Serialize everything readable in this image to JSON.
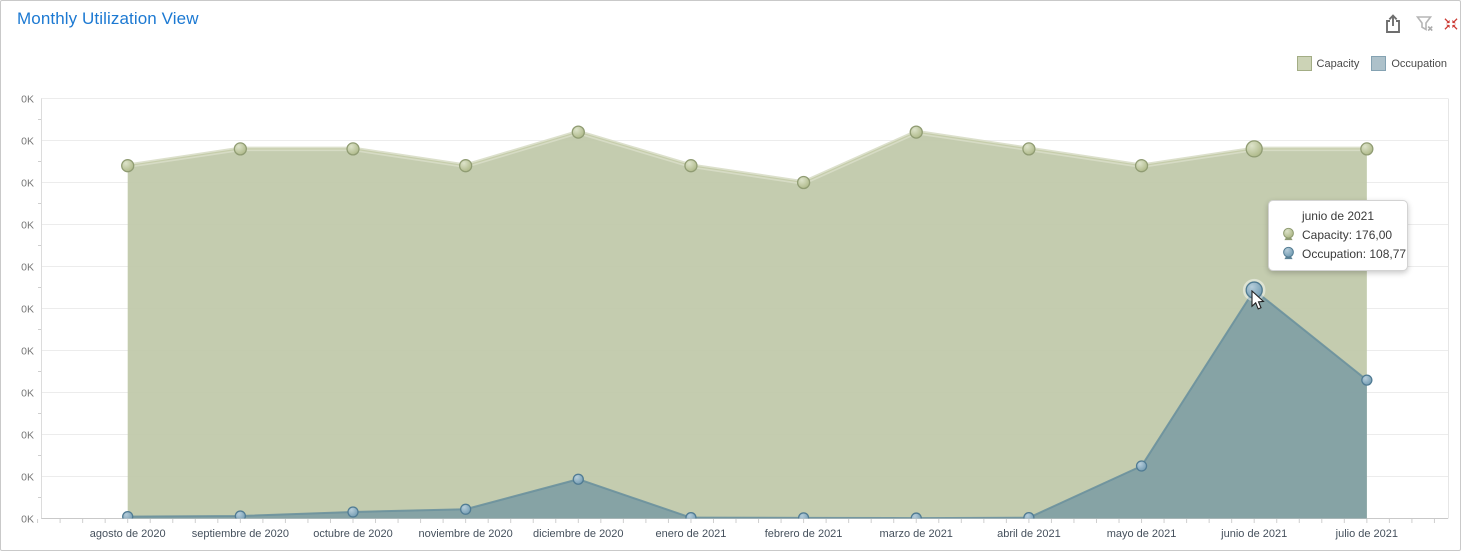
{
  "header": {
    "title": "Monthly Utilization View",
    "icons": [
      {
        "name": "export-icon",
        "color": "#6e6e6e"
      },
      {
        "name": "clear-filter-icon",
        "color": "#b5b5b5"
      },
      {
        "name": "collapse-icon",
        "color": "#cc3a33"
      }
    ]
  },
  "chart_data": {
    "type": "area",
    "title": "Monthly Utilization View",
    "categories": [
      "agosto de 2020",
      "septiembre de 2020",
      "octubre de 2020",
      "noviembre de 2020",
      "diciembre de 2020",
      "enero de 2021",
      "febrero de 2021",
      "marzo de 2021",
      "abril de 2021",
      "mayo de 2021",
      "junio de 2021",
      "julio de 2021"
    ],
    "series": [
      {
        "name": "Capacity",
        "values": [
          168,
          176,
          176,
          168,
          184,
          168,
          160,
          184,
          176,
          168,
          176,
          176
        ],
        "fill": "#bfc8a8",
        "fill_opacity": 0.92,
        "edge_light": "#d8ddc6",
        "edge": "#c3cba7",
        "marker_stroke": "#909c73",
        "marker_grad_in": "#dde3ca",
        "marker_grad_out": "#aab583",
        "swatch_fill": "#ccd3b6",
        "swatch_border": "#a3ad85"
      },
      {
        "name": "Occupation",
        "values": [
          0.9,
          1.2,
          3.1,
          4.4,
          18.7,
          0.4,
          0.3,
          0.2,
          0.4,
          25,
          108.77,
          65.9
        ],
        "fill": "#7b9ba3",
        "fill_opacity": 0.85,
        "edge": "#6b919d",
        "marker_stroke": "#507b93",
        "marker_grad_in": "#b6cdda",
        "marker_grad_out": "#6f99b0",
        "swatch_fill": "#adc1ca",
        "swatch_border": "#84a2b2"
      }
    ],
    "ylim": [
      0,
      200
    ],
    "y_tick_step": 20,
    "y_tick_label": "0K",
    "y_tick_count": 11,
    "grid": true,
    "legend_position": "top-right",
    "hover_index": 10
  },
  "tooltip": {
    "title": "junio de 2021",
    "rows": [
      {
        "series": "Capacity",
        "text": "Capacity: 176,00"
      },
      {
        "series": "Occupation",
        "text": "Occupation: 108,77"
      }
    ]
  },
  "colors": {
    "title": "#1c79d2",
    "grid": "#ececec",
    "axis": "#c9c9c9",
    "y_label": "#777777",
    "x_label": "#45505c"
  }
}
